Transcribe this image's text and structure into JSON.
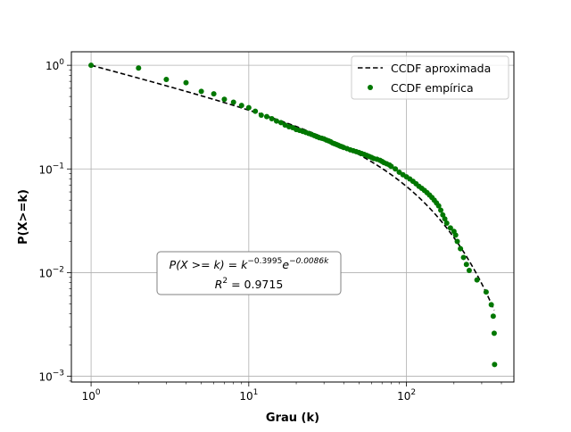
{
  "chart_data": {
    "type": "scatter",
    "x_scale": "log",
    "y_scale": "log",
    "xlabel": "Grau (k)",
    "ylabel": "P(X>=k)",
    "xlim": [
      0.75,
      480
    ],
    "ylim": [
      0.00088,
      1.35
    ],
    "grid": true,
    "legend_position": "top-right",
    "x_ticks": [
      {
        "value": 1,
        "base": "10",
        "exp": "0"
      },
      {
        "value": 10,
        "base": "10",
        "exp": "1"
      },
      {
        "value": 100,
        "base": "10",
        "exp": "2"
      }
    ],
    "y_ticks": [
      {
        "value": 0.001,
        "base": "10",
        "exp": "−3"
      },
      {
        "value": 0.01,
        "base": "10",
        "exp": "−2"
      },
      {
        "value": 0.1,
        "base": "10",
        "exp": "−1"
      },
      {
        "value": 1,
        "base": "10",
        "exp": "0"
      }
    ],
    "series": [
      {
        "name": "CCDF aproximada",
        "kind": "line",
        "style": "dashed",
        "color": "#000000",
        "model": {
          "alpha": -0.3995,
          "lambda": -0.0086
        },
        "x_range": [
          1,
          360
        ]
      },
      {
        "name": "CCDF empírica",
        "kind": "scatter",
        "color": "#007700",
        "points": [
          [
            1,
            1.0
          ],
          [
            2,
            0.94
          ],
          [
            3,
            0.73
          ],
          [
            4,
            0.68
          ],
          [
            5,
            0.56
          ],
          [
            6,
            0.53
          ],
          [
            7,
            0.47
          ],
          [
            8,
            0.44
          ],
          [
            9,
            0.41
          ],
          [
            10,
            0.39
          ],
          [
            11,
            0.36
          ],
          [
            12,
            0.33
          ],
          [
            13,
            0.32
          ],
          [
            14,
            0.305
          ],
          [
            15,
            0.29
          ],
          [
            16,
            0.28
          ],
          [
            17,
            0.265
          ],
          [
            18,
            0.255
          ],
          [
            19,
            0.25
          ],
          [
            20,
            0.24
          ],
          [
            21,
            0.235
          ],
          [
            22,
            0.23
          ],
          [
            23,
            0.225
          ],
          [
            24,
            0.22
          ],
          [
            25,
            0.215
          ],
          [
            26,
            0.21
          ],
          [
            27,
            0.205
          ],
          [
            28,
            0.2
          ],
          [
            29,
            0.198
          ],
          [
            30,
            0.195
          ],
          [
            31,
            0.19
          ],
          [
            32,
            0.187
          ],
          [
            33,
            0.183
          ],
          [
            34,
            0.178
          ],
          [
            35,
            0.175
          ],
          [
            36,
            0.172
          ],
          [
            37,
            0.169
          ],
          [
            38,
            0.166
          ],
          [
            39,
            0.164
          ],
          [
            40,
            0.161
          ],
          [
            42,
            0.157
          ],
          [
            44,
            0.153
          ],
          [
            46,
            0.15
          ],
          [
            48,
            0.147
          ],
          [
            50,
            0.144
          ],
          [
            52,
            0.141
          ],
          [
            54,
            0.138
          ],
          [
            56,
            0.135
          ],
          [
            58,
            0.132
          ],
          [
            60,
            0.129
          ],
          [
            62,
            0.126
          ],
          [
            65,
            0.124
          ],
          [
            68,
            0.121
          ],
          [
            70,
            0.118
          ],
          [
            72,
            0.115
          ],
          [
            75,
            0.112
          ],
          [
            78,
            0.109
          ],
          [
            80,
            0.106
          ],
          [
            85,
            0.1
          ],
          [
            90,
            0.093
          ],
          [
            95,
            0.088
          ],
          [
            100,
            0.084
          ],
          [
            105,
            0.08
          ],
          [
            110,
            0.076
          ],
          [
            115,
            0.072
          ],
          [
            120,
            0.068
          ],
          [
            125,
            0.065
          ],
          [
            130,
            0.062
          ],
          [
            135,
            0.059
          ],
          [
            140,
            0.056
          ],
          [
            145,
            0.053
          ],
          [
            150,
            0.05
          ],
          [
            155,
            0.047
          ],
          [
            160,
            0.044
          ],
          [
            165,
            0.04
          ],
          [
            170,
            0.036
          ],
          [
            175,
            0.033
          ],
          [
            180,
            0.03
          ],
          [
            190,
            0.027
          ],
          [
            200,
            0.025
          ],
          [
            205,
            0.023
          ],
          [
            210,
            0.02
          ],
          [
            220,
            0.017
          ],
          [
            230,
            0.014
          ],
          [
            240,
            0.012
          ],
          [
            250,
            0.0105
          ],
          [
            280,
            0.0085
          ],
          [
            320,
            0.0065
          ],
          [
            345,
            0.0049
          ],
          [
            355,
            0.0038
          ],
          [
            360,
            0.0026
          ],
          [
            362,
            0.0013
          ]
        ]
      }
    ],
    "annotation": {
      "line1_parts": [
        "P(X >= k) = k",
        "−0.3995",
        "e",
        "−0.0086k"
      ],
      "line2_parts": [
        "R",
        "2",
        " = 0.9715"
      ]
    }
  }
}
